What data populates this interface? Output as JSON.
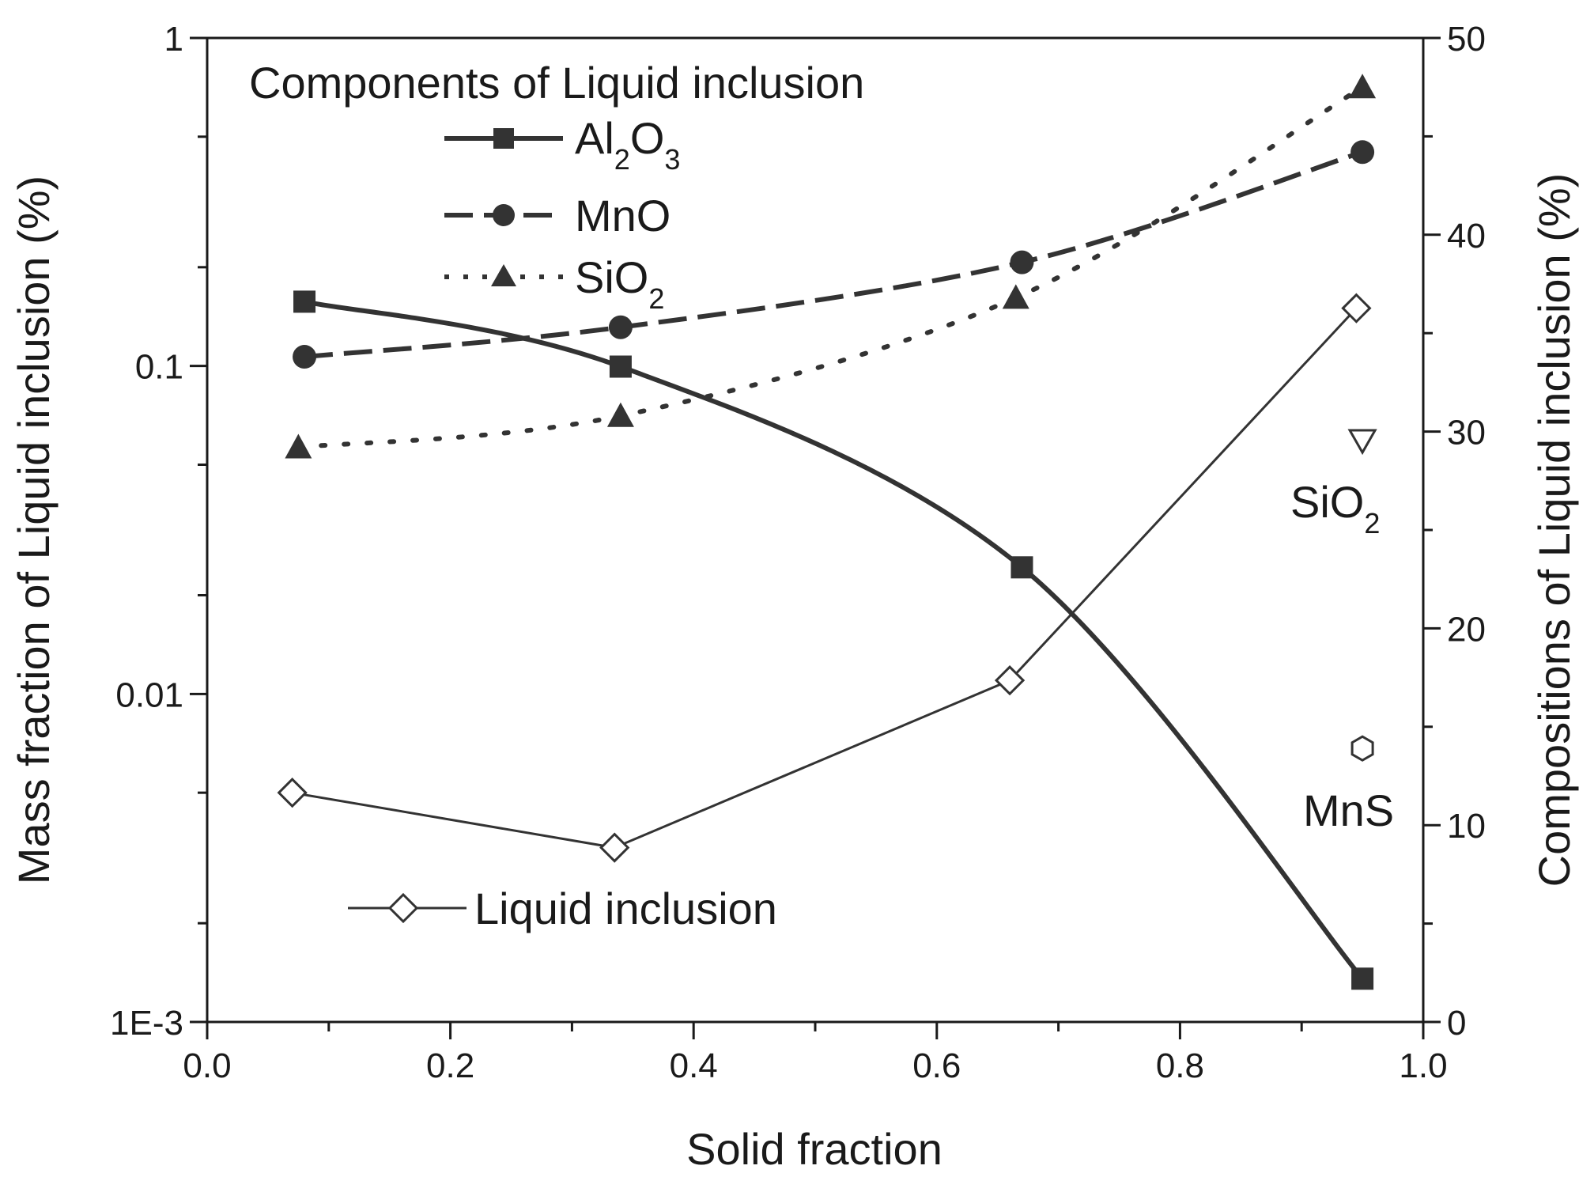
{
  "chart_data": {
    "type": "line",
    "xlabel": "Solid fraction",
    "ylabel_left": "Mass fraction of Liquid inclusion (%)",
    "ylabel_right": "Compositions of Liquid inclusion (%)",
    "xlim": [
      0.0,
      1.0
    ],
    "ylim_left_log": [
      0.001,
      1
    ],
    "ylim_right": [
      0,
      50
    ],
    "x_ticks": [
      "0.0",
      "0.2",
      "0.4",
      "0.6",
      "0.8",
      "1.0"
    ],
    "left_ticks": [
      "1",
      "0.1",
      "0.01",
      "1E-3"
    ],
    "right_ticks": [
      "50",
      "40",
      "30",
      "20",
      "10",
      "0"
    ],
    "legend_title": "Components of Liquid inclusion",
    "legend_liquid": "Liquid inclusion",
    "series": [
      {
        "name": "Al2O3",
        "label_main": "Al",
        "label_sub1": "2",
        "label_mid": "O",
        "label_sub2": "3",
        "axis": "right",
        "style": "solid",
        "marker": "square",
        "x": [
          0.08,
          0.34,
          0.67,
          0.95
        ],
        "values": [
          36.6,
          33.3,
          23.1,
          2.2
        ]
      },
      {
        "name": "MnO",
        "label_main": "MnO",
        "axis": "right",
        "style": "dash",
        "marker": "circle",
        "x": [
          0.08,
          0.34,
          0.67,
          0.95
        ],
        "values": [
          33.8,
          35.3,
          38.6,
          44.2
        ]
      },
      {
        "name": "SiO2",
        "label_main": "SiO",
        "label_sub1": "2",
        "axis": "right",
        "style": "dot",
        "marker": "triangle",
        "x": [
          0.075,
          0.34,
          0.665,
          0.95
        ],
        "values": [
          29.2,
          30.8,
          36.8,
          47.5
        ]
      },
      {
        "name": "Liquid inclusion",
        "axis": "left",
        "style": "thin",
        "marker": "diamond",
        "x": [
          0.07,
          0.335,
          0.66,
          0.945
        ],
        "values": [
          0.005,
          0.0034,
          0.011,
          0.15
        ]
      }
    ],
    "annotations": [
      {
        "id": "sio2-solid",
        "text_main": "SiO",
        "text_sub": "2",
        "marker": "triangle-down",
        "x": 0.95,
        "value": 29.5
      },
      {
        "id": "mns-solid",
        "text_main": "MnS",
        "text_sub": "",
        "marker": "hexagon",
        "x": 0.95,
        "value": 13.9
      }
    ]
  }
}
